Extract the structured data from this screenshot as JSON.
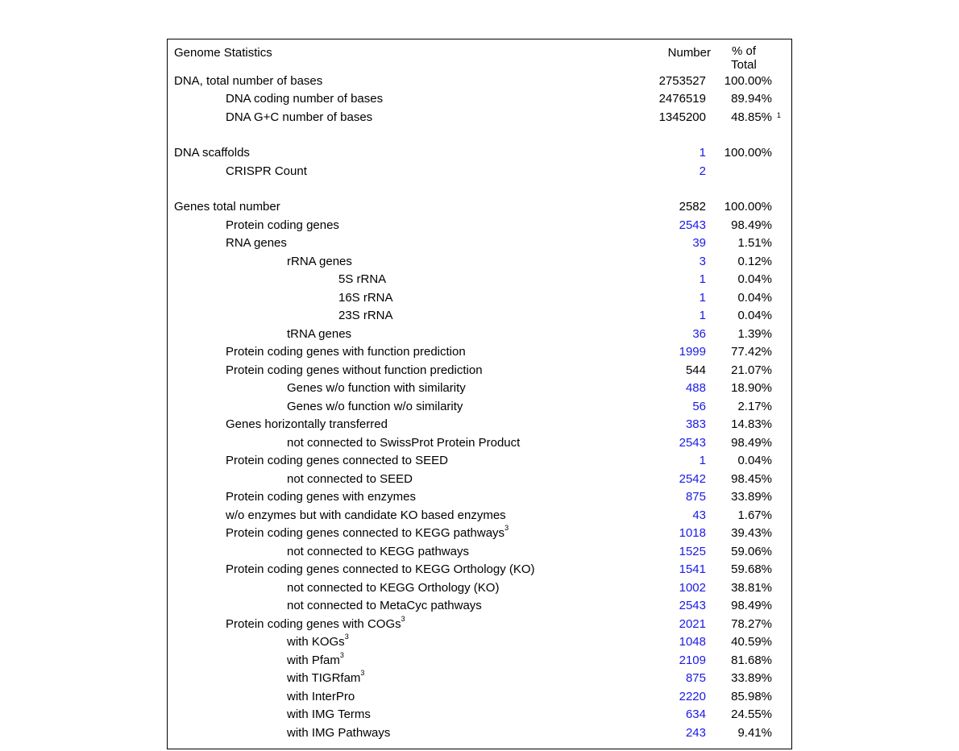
{
  "header": {
    "title": "Genome Statistics",
    "col_number": "Number",
    "col_pct_line1": "%  of",
    "col_pct_line2": "Total"
  },
  "rows": [
    {
      "indent": 0,
      "label": "DNA, total number of bases",
      "number": "2753527",
      "percent": "100.00%",
      "num_link": false
    },
    {
      "indent": 1,
      "label": "DNA coding number of bases",
      "number": "2476519",
      "percent": "89.94%",
      "num_link": false
    },
    {
      "indent": 1,
      "label": "DNA G+C number of bases",
      "number": "1345200",
      "percent": "48.85%",
      "num_link": false,
      "foot": "1"
    },
    {
      "spacer": true
    },
    {
      "indent": 0,
      "label": "DNA scaffolds",
      "number": "1",
      "percent": "100.00%",
      "num_link": true
    },
    {
      "indent": 1,
      "label": "CRISPR Count",
      "number": "2",
      "percent": "",
      "num_link": true
    },
    {
      "spacer": true
    },
    {
      "indent": 0,
      "label": "Genes total number",
      "number": "2582",
      "percent": "100.00%",
      "num_link": false
    },
    {
      "indent": 1,
      "label": "Protein coding genes",
      "number": "2543",
      "percent": "98.49%",
      "num_link": true
    },
    {
      "indent": 1,
      "label": "RNA genes",
      "number": "39",
      "percent": "1.51%",
      "num_link": true
    },
    {
      "indent": 2,
      "label": "rRNA genes",
      "number": "3",
      "percent": "0.12%",
      "num_link": true
    },
    {
      "indent": 3,
      "label": "5S rRNA",
      "number": "1",
      "percent": "0.04%",
      "num_link": true
    },
    {
      "indent": 3,
      "label": "16S rRNA",
      "number": "1",
      "percent": "0.04%",
      "num_link": true
    },
    {
      "indent": 3,
      "label": "23S rRNA",
      "number": "1",
      "percent": "0.04%",
      "num_link": true
    },
    {
      "indent": 2,
      "label": "tRNA genes",
      "number": "36",
      "percent": "1.39%",
      "num_link": true
    },
    {
      "indent": 1,
      "label": "Protein coding genes with function prediction",
      "number": "1999",
      "percent": "77.42%",
      "num_link": true
    },
    {
      "indent": 1,
      "label": "Protein coding genes without function prediction",
      "number": "544",
      "percent": "21.07%",
      "num_link": false
    },
    {
      "indent": 2,
      "label": "Genes w/o function with similarity",
      "number": "488",
      "percent": "18.90%",
      "num_link": true
    },
    {
      "indent": 2,
      "label": "Genes w/o function w/o similarity",
      "number": "56",
      "percent": "2.17%",
      "num_link": true
    },
    {
      "indent": 1,
      "label": "Genes horizontally transferred",
      "number": "383",
      "percent": "14.83%",
      "num_link": true
    },
    {
      "indent": 2,
      "label": "not connected to SwissProt Protein Product",
      "number": "2543",
      "percent": "98.49%",
      "num_link": true
    },
    {
      "indent": 1,
      "label": "Protein coding genes connected to SEED",
      "number": "1",
      "percent": "0.04%",
      "num_link": true
    },
    {
      "indent": 2,
      "label": "not connected to SEED",
      "number": "2542",
      "percent": "98.45%",
      "num_link": true
    },
    {
      "indent": 1,
      "label": "Protein coding genes with enzymes",
      "number": "875",
      "percent": "33.89%",
      "num_link": true
    },
    {
      "indent": 1,
      "label": "w/o enzymes but with candidate KO based enzymes",
      "number": "43",
      "percent": "1.67%",
      "num_link": true
    },
    {
      "indent": 1,
      "label": "Protein coding genes connected to KEGG pathways",
      "sup": "3",
      "number": "1018",
      "percent": "39.43%",
      "num_link": true
    },
    {
      "indent": 2,
      "label": "not connected to KEGG pathways",
      "number": "1525",
      "percent": "59.06%",
      "num_link": true
    },
    {
      "indent": 1,
      "label": "Protein coding genes connected to KEGG Orthology (KO)",
      "number": "1541",
      "percent": "59.68%",
      "num_link": true
    },
    {
      "indent": 2,
      "label": "not connected to KEGG Orthology (KO)",
      "number": "1002",
      "percent": "38.81%",
      "num_link": true
    },
    {
      "indent": 2,
      "label": "not connected to MetaCyc pathways",
      "number": "2543",
      "percent": "98.49%",
      "num_link": true
    },
    {
      "indent": 1,
      "label": "Protein coding genes with COGs",
      "sup": "3",
      "number": "2021",
      "percent": "78.27%",
      "num_link": true
    },
    {
      "indent": 2,
      "label": "with KOGs",
      "sup": "3",
      "number": "1048",
      "percent": "40.59%",
      "num_link": true
    },
    {
      "indent": 2,
      "label": "with Pfam",
      "sup": "3",
      "number": "2109",
      "percent": "81.68%",
      "num_link": true
    },
    {
      "indent": 2,
      "label": "with TIGRfam",
      "sup": "3",
      "number": "875",
      "percent": "33.89%",
      "num_link": true
    },
    {
      "indent": 2,
      "label": "with InterPro",
      "number": "2220",
      "percent": "85.98%",
      "num_link": true
    },
    {
      "indent": 2,
      "label": "with IMG Terms",
      "number": "634",
      "percent": "24.55%",
      "num_link": true
    },
    {
      "indent": 2,
      "label": "with IMG Pathways",
      "number": "243",
      "percent": "9.41%",
      "num_link": true
    }
  ],
  "colors": {
    "text": "#000000",
    "link": "#1a1ae6",
    "border": "#000000",
    "background": "#ffffff"
  }
}
